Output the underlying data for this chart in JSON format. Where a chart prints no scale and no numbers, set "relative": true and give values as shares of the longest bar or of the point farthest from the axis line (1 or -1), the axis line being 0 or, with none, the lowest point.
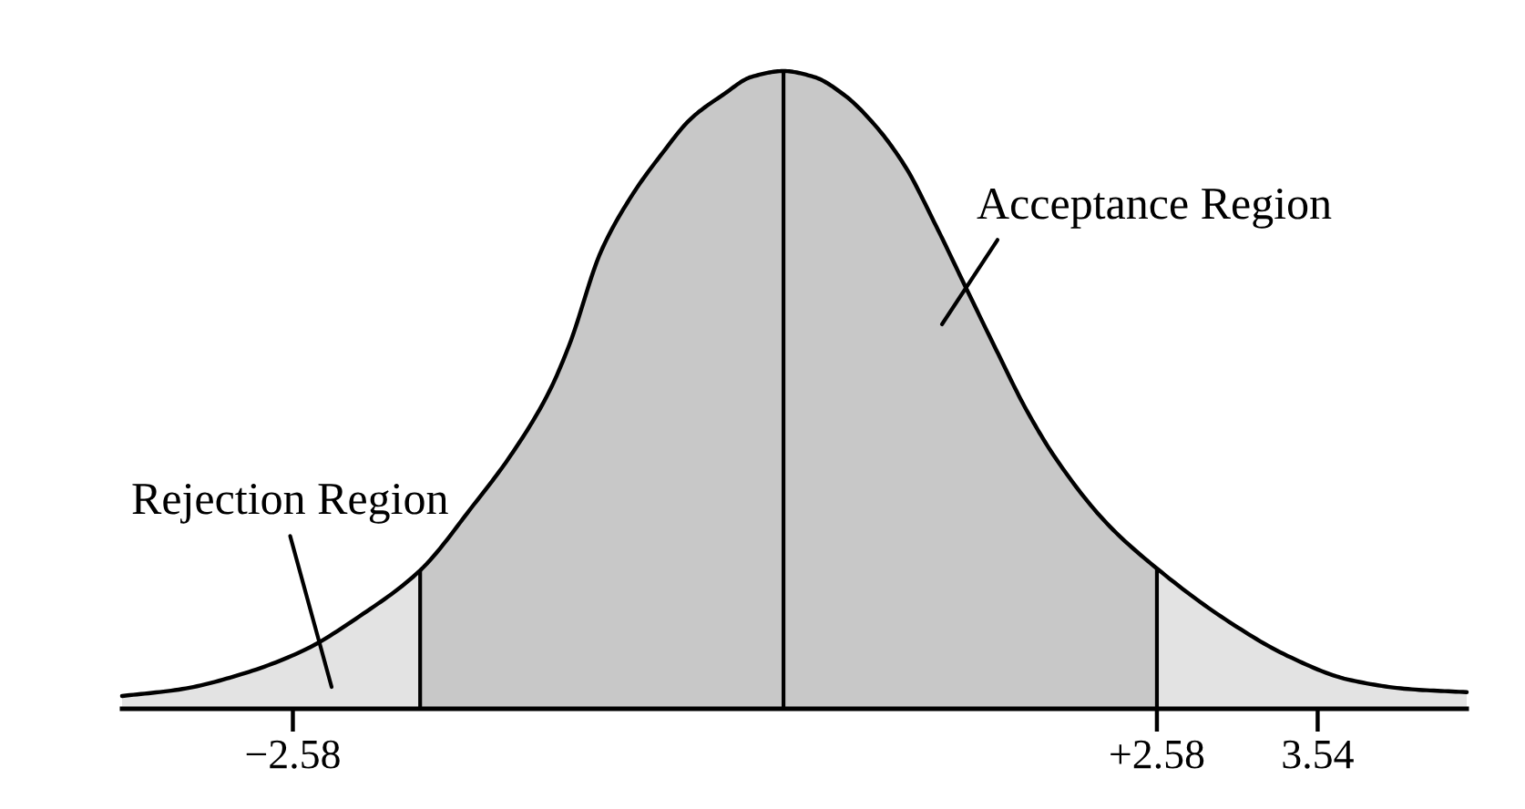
{
  "chart_data": {
    "type": "area",
    "relative": true,
    "xlim": [
      -3.6,
      4.43
    ],
    "xticks": [
      {
        "value": -2.58,
        "label": "−2.58"
      },
      {
        "value": 2.58,
        "label": "+2.58"
      },
      3.54
    ],
    "tick_labels": "x",
    "series": [
      {
        "color": "#e3e3e3",
        "x": [
          -3.6,
          -3.24,
          -2.89,
          -2.52,
          -2.16,
          -1.82
        ],
        "values": [
          0.02,
          0.031,
          0.054,
          0.091,
          0.149,
          0.217
        ]
      },
      {
        "color": "#c8c8c8",
        "x": [
          -1.82,
          -1.5,
          -1.28,
          -1.05,
          -0.93,
          -0.74,
          -0.56,
          -0.38,
          -0.2,
          -0.01,
          0.16,
          0.35,
          0.53,
          0.71,
          0.89,
          1.08,
          1.25,
          1.44,
          1.62,
          1.8,
          1.98,
          2.28,
          2.58
        ],
        "values": [
          0.217,
          0.32,
          0.397,
          0.497,
          0.57,
          0.717,
          0.803,
          0.869,
          0.926,
          0.963,
          0.991,
          1,
          0.991,
          0.963,
          0.917,
          0.849,
          0.763,
          0.66,
          0.563,
          0.469,
          0.391,
          0.291,
          0.22
        ]
      },
      {
        "color": "#e3e3e3",
        "x": [
          2.58,
          2.99,
          3.36,
          3.72,
          4.08,
          4.43
        ],
        "values": [
          0.22,
          0.14,
          0.083,
          0.046,
          0.031,
          0.026
        ]
      },
      {
        "type": "line",
        "color": "#000000",
        "x": [
          -3.6,
          -3.24,
          -2.89,
          -2.52,
          -2.16,
          -1.82,
          -1.5,
          -1.28,
          -1.05,
          -0.93,
          -0.74,
          -0.56,
          -0.38,
          -0.2,
          -0.01,
          0.16,
          0.35,
          0.53,
          0.71,
          0.89,
          1.08,
          1.25,
          1.44,
          1.62,
          1.8,
          1.98,
          2.28,
          2.58,
          2.99,
          3.36,
          3.72,
          4.08,
          4.43
        ],
        "values": [
          0.02,
          0.031,
          0.054,
          0.091,
          0.149,
          0.217,
          0.32,
          0.397,
          0.497,
          0.57,
          0.717,
          0.803,
          0.869,
          0.926,
          0.963,
          0.991,
          1,
          0.991,
          0.963,
          0.917,
          0.849,
          0.763,
          0.66,
          0.563,
          0.469,
          0.391,
          0.291,
          0.22,
          0.14,
          0.083,
          0.046,
          0.031,
          0.026
        ]
      }
    ],
    "ref_lines": [
      {
        "axis": "x",
        "value": -1.82,
        "color": "#000000"
      },
      {
        "axis": "x",
        "value": 0.35,
        "color": "#000000"
      },
      {
        "axis": "x",
        "value": 2.58,
        "color": "#000000"
      }
    ],
    "annotations": [
      "Acceptance Region",
      "Rejection Region"
    ]
  }
}
